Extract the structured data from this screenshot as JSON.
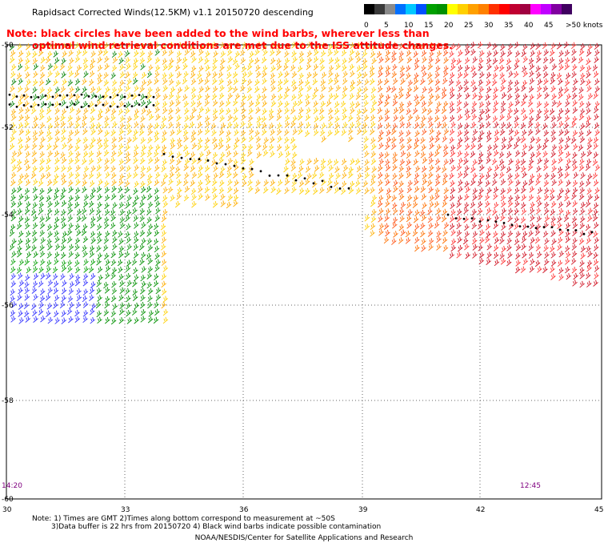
{
  "title": "Rapidsact Corrected Winds(12.5KM) v1.1 20150720 descending",
  "note_line1": "Note: black circles have been added to the wind barbs, wherever less than",
  "note_line2": "optimal wind retrieval conditions are met due to the ISS attitude changes.",
  "colorbar": {
    "labels": [
      "0",
      "5",
      "10",
      "15",
      "20",
      "25",
      "30",
      "35",
      "40",
      "45",
      ">50 knots"
    ],
    "colors": [
      "#000000",
      "#3a3a3a",
      "#8a8a8a",
      "#0070ff",
      "#00c8ff",
      "#0050ff",
      "#00a000",
      "#009000",
      "#ffff00",
      "#ffd000",
      "#ffa000",
      "#ff8000",
      "#ff3000",
      "#ff0000",
      "#c00030",
      "#a00040",
      "#ff00ff",
      "#c000ff",
      "#8000a0",
      "#400060"
    ]
  },
  "axes": {
    "lat_labels": [
      "-50",
      "-52",
      "-54",
      "-56",
      "-58",
      "-60"
    ],
    "lon_labels": [
      "30",
      "33",
      "36",
      "39",
      "42",
      "45"
    ]
  },
  "times": {
    "left": "14:20",
    "right": "12:45"
  },
  "footnotes": {
    "line1": "Note: 1) Times are GMT 2)Times along bottom correspond to measurement at ~50S",
    "line2": "3)Data buffer is 22 hrs from 20150720 4) Black wind barbs indicate possible contamination"
  },
  "credit": "NOAA/NESDIS/Center for Satellite Applications and Research"
}
